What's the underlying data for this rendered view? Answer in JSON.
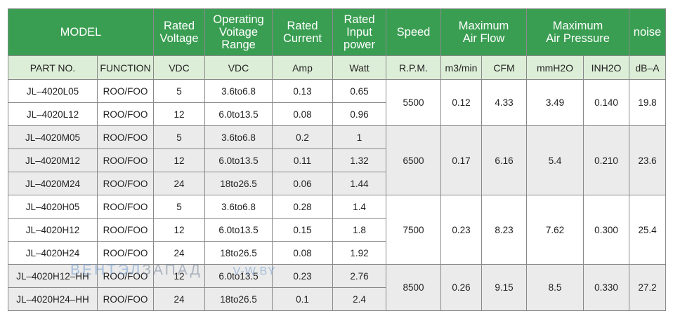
{
  "header": {
    "model": "MODEL",
    "rated_voltage": "Rated\nVoltage",
    "operating_voltage_range": "Operating\nVoitage\nRange",
    "rated_current": "Rated\nCurrent",
    "rated_input_power": "Rated\nInput\npower",
    "speed": "Speed",
    "max_air_flow": "Maximum\nAir Flow",
    "max_air_pressure": "Maximum\nAir Pressure",
    "noise": "noise"
  },
  "subheader": [
    "PART NO.",
    "FUNCTION",
    "VDC",
    "VDC",
    "Amp",
    "Watt",
    "R.P.M.",
    "m3/min",
    "CFM",
    "mmH2O",
    "INH2O",
    "dB–A"
  ],
  "rows": [
    {
      "part": "JL–4020L05",
      "function": "ROO/FOO",
      "voltage": "5",
      "range": "3.6to6.8",
      "current": "0.13",
      "power": "0.65"
    },
    {
      "part": "JL–4020L12",
      "function": "ROO/FOO",
      "voltage": "12",
      "range": "6.0to13.5",
      "current": "0.08",
      "power": "0.96"
    },
    {
      "part": "JL–4020M05",
      "function": "ROO/FOO",
      "voltage": "5",
      "range": "3.6to6.8",
      "current": "0.2",
      "power": "1"
    },
    {
      "part": "JL–4020M12",
      "function": "ROO/FOO",
      "voltage": "12",
      "range": "6.0to13.5",
      "current": "0.11",
      "power": "1.32"
    },
    {
      "part": "JL–4020M24",
      "function": "ROO/FOO",
      "voltage": "24",
      "range": "18to26.5",
      "current": "0.06",
      "power": "1.44"
    },
    {
      "part": "JL–4020H05",
      "function": "ROO/FOO",
      "voltage": "5",
      "range": "3.6to6.8",
      "current": "0.28",
      "power": "1.4"
    },
    {
      "part": "JL–4020H12",
      "function": "ROO/FOO",
      "voltage": "12",
      "range": "6.0to13.5",
      "current": "0.15",
      "power": "1.8"
    },
    {
      "part": "JL–4020H24",
      "function": "ROO/FOO",
      "voltage": "24",
      "range": "18to26.5",
      "current": "0.08",
      "power": "1.92"
    },
    {
      "part": "JL–4020H12–HH",
      "function": "ROO/FOO",
      "voltage": "12",
      "range": "6.0to13.5",
      "current": "0.23",
      "power": "2.76"
    },
    {
      "part": "JL–4020H24–HH",
      "function": "ROO/FOO",
      "voltage": "24",
      "range": "18to26.5",
      "current": "0.1",
      "power": "2.4"
    }
  ],
  "groups": [
    {
      "speed": "5500",
      "m3min": "0.12",
      "cfm": "4.33",
      "mmh2o": "3.49",
      "inh2o": "0.140",
      "noise": "19.8"
    },
    {
      "speed": "6500",
      "m3min": "0.17",
      "cfm": "6.16",
      "mmh2o": "5.4",
      "inh2o": "0.210",
      "noise": "23.6"
    },
    {
      "speed": "7500",
      "m3min": "0.23",
      "cfm": "8.23",
      "mmh2o": "7.62",
      "inh2o": "0.300",
      "noise": "25.4"
    },
    {
      "speed": "8500",
      "m3min": "0.26",
      "cfm": "9.15",
      "mmh2o": "8.5",
      "inh2o": "0.330",
      "noise": "27.2"
    }
  ],
  "watermark": {
    "brand_a": "ВЕНТЭЛ",
    "brand_b": "ЗАПАД",
    "site": "V-W.BY"
  },
  "colors": {
    "header_bg": "#3a9e52",
    "subheader_bg": "#ddeed8",
    "shaded_row": "#ebebeb"
  }
}
